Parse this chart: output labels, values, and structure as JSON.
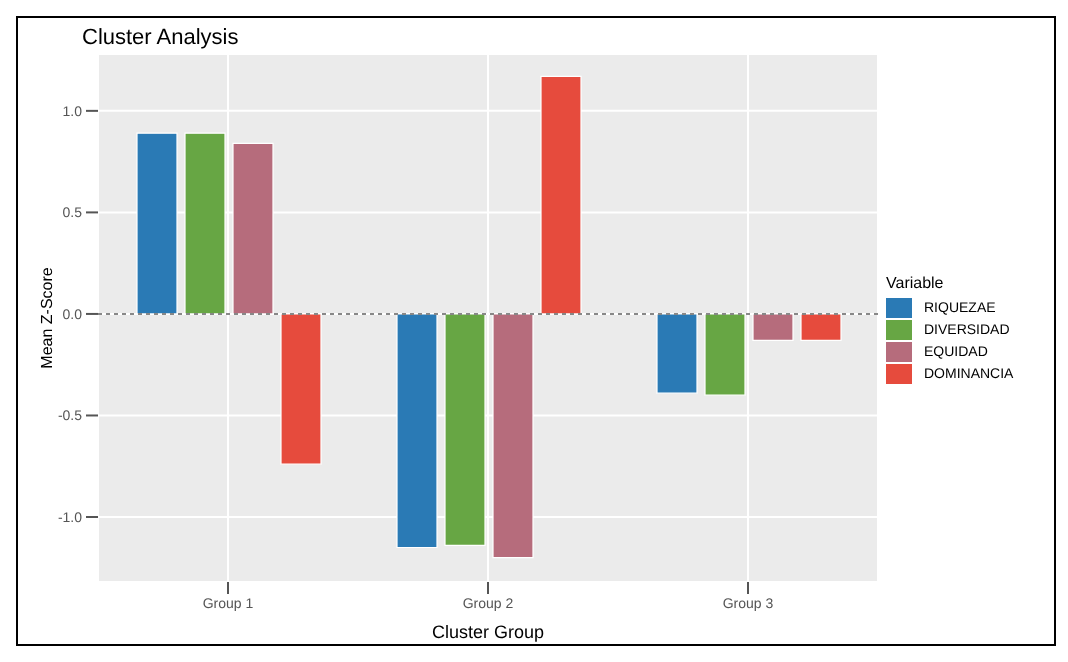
{
  "chart_data": {
    "type": "bar",
    "title": "Cluster Analysis",
    "xlabel": "Cluster Group",
    "ylabel": "Mean Z-Score",
    "legend_title": "Variable",
    "categories": [
      "Group 1",
      "Group 2",
      "Group 3"
    ],
    "series": [
      {
        "name": "RIQUEZAE",
        "color": "#2a7ab5",
        "values": [
          0.89,
          -1.15,
          -0.39
        ]
      },
      {
        "name": "DIVERSIDAD",
        "color": "#67a644",
        "values": [
          0.89,
          -1.14,
          -0.4
        ]
      },
      {
        "name": "EQUIDAD",
        "color": "#b66c7c",
        "values": [
          0.84,
          -1.2,
          -0.13
        ]
      },
      {
        "name": "DOMINANCIA",
        "color": "#e64b3d",
        "values": [
          -0.74,
          1.17,
          -0.13
        ]
      }
    ],
    "ylim": [
      -1.32,
      1.28
    ],
    "yticks": [
      {
        "value": -1,
        "label": "-1.0"
      },
      {
        "value": -0.5,
        "label": "-0.5"
      },
      {
        "value": 0,
        "label": "0.0"
      },
      {
        "value": 0.5,
        "label": "0.5"
      },
      {
        "value": 1,
        "label": "1.0"
      }
    ],
    "ref_lines": [
      {
        "axis": "y",
        "value": 0,
        "line_style": "dotted",
        "color": "#888888"
      }
    ],
    "grid": true,
    "legend": "right"
  }
}
